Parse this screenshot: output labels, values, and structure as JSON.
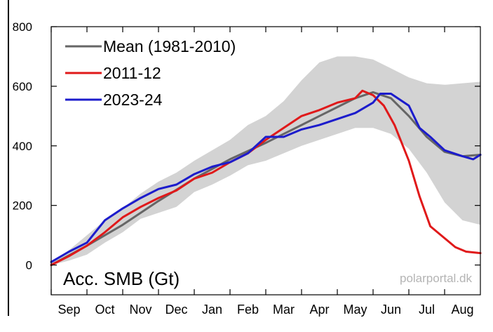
{
  "chart_data": {
    "type": "line",
    "title": "",
    "ylabel": "",
    "xlabel": "",
    "annotation": "Acc. SMB (Gt)",
    "watermark": "polarportal.dk",
    "ylim": [
      -100,
      800
    ],
    "xlim": [
      0,
      12
    ],
    "yticks": [
      0,
      200,
      400,
      600,
      800
    ],
    "ytick_labels": [
      "0",
      "200",
      "400",
      "600",
      "800"
    ],
    "months": [
      "Sep",
      "Oct",
      "Nov",
      "Dec",
      "Jan",
      "Feb",
      "Mar",
      "Apr",
      "May",
      "Jun",
      "Jul",
      "Aug"
    ],
    "legend_position": "top-left",
    "grid": false,
    "band": {
      "color": "#d3d3d3",
      "x": [
        0,
        0.5,
        1,
        1.5,
        2,
        2.5,
        3,
        3.5,
        4,
        4.5,
        5,
        5.5,
        6,
        6.5,
        7,
        7.5,
        8,
        8.5,
        9,
        9.5,
        10,
        10.5,
        11,
        11.5,
        12
      ],
      "upper": [
        10,
        50,
        100,
        150,
        190,
        240,
        280,
        310,
        350,
        385,
        420,
        470,
        500,
        550,
        620,
        680,
        700,
        700,
        690,
        660,
        630,
        610,
        605,
        610,
        615
      ],
      "lower": [
        0,
        15,
        35,
        75,
        110,
        155,
        175,
        195,
        245,
        270,
        300,
        335,
        350,
        375,
        400,
        420,
        440,
        460,
        460,
        440,
        390,
        310,
        210,
        150,
        135
      ]
    },
    "series": [
      {
        "name": "Mean (1981-2010)",
        "color": "#666666",
        "x": [
          0,
          1,
          2,
          3,
          4,
          5,
          6,
          6.5,
          7,
          7.5,
          8,
          8.5,
          9,
          9.5,
          10,
          10.5,
          11,
          11.5,
          12
        ],
        "y": [
          0,
          65,
          135,
          215,
          290,
          355,
          410,
          440,
          470,
          500,
          530,
          560,
          580,
          560,
          500,
          430,
          380,
          365,
          370
        ]
      },
      {
        "name": "2011-12",
        "color": "#e0191a",
        "x": [
          0,
          0.5,
          1,
          1.5,
          2,
          2.5,
          3,
          3.5,
          4,
          4.5,
          5,
          5.5,
          6,
          6.5,
          7,
          7.5,
          8,
          8.5,
          8.7,
          9,
          9.3,
          9.6,
          10,
          10.3,
          10.6,
          11,
          11.3,
          11.6,
          12
        ],
        "y": [
          0,
          30,
          65,
          110,
          160,
          195,
          225,
          250,
          290,
          310,
          345,
          375,
          420,
          460,
          500,
          520,
          545,
          560,
          585,
          570,
          535,
          470,
          350,
          230,
          130,
          90,
          60,
          45,
          40
        ]
      },
      {
        "name": "2023-24",
        "color": "#1c1ccc",
        "x": [
          0,
          0.5,
          1,
          1.5,
          2,
          2.5,
          3,
          3.5,
          4,
          4.5,
          5,
          5.5,
          6,
          6.5,
          7,
          7.5,
          8,
          8.5,
          9,
          9.2,
          9.5,
          10,
          10.3,
          10.6,
          11,
          11.5,
          11.8,
          12
        ],
        "y": [
          10,
          45,
          75,
          150,
          190,
          225,
          255,
          270,
          305,
          330,
          345,
          375,
          430,
          430,
          455,
          470,
          490,
          510,
          545,
          575,
          575,
          535,
          460,
          430,
          385,
          365,
          355,
          370
        ]
      }
    ]
  }
}
